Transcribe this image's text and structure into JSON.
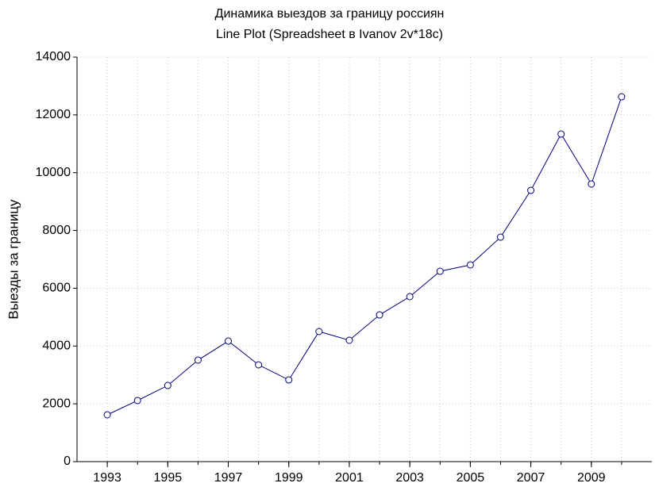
{
  "chart_data": {
    "type": "line",
    "title": "Динамика выездов за границу россиян",
    "subtitle": "Line Plot (Spreadsheet в Ivanov 2v*18c)",
    "y_label": "Выезды за границу",
    "x": [
      1993,
      1994,
      1995,
      1996,
      1997,
      1998,
      1999,
      2000,
      2001,
      2002,
      2003,
      2004,
      2005,
      2006,
      2007,
      2008,
      2009,
      2010
    ],
    "series": [
      {
        "color": "#000080",
        "values": [
          1620,
          2114,
          2635,
          3514,
          4172,
          3349,
          2827,
          4502,
          4200,
          5078,
          5710,
          6588,
          6808,
          7769,
          9388,
          11337,
          9608,
          12627
        ]
      }
    ],
    "xlim": [
      1992,
      2011
    ],
    "xticks": [
      1993,
      1995,
      1997,
      1999,
      2001,
      2003,
      2005,
      2007,
      2009
    ],
    "ylim": [
      0,
      14000
    ],
    "yticks": [
      0,
      2000,
      4000,
      6000,
      8000,
      10000,
      12000,
      14000
    ],
    "grid": true
  }
}
